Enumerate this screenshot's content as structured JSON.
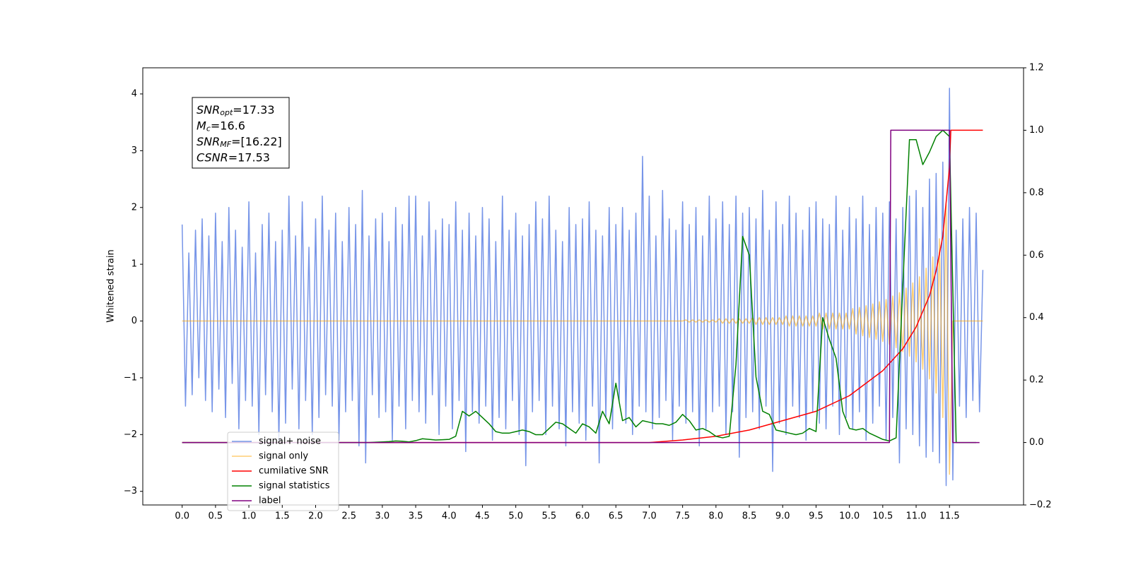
{
  "chart_data": {
    "type": "line",
    "y_label": "Whitened strain",
    "xlim": [
      -0.59,
      12.61
    ],
    "ylim": [
      -3.24,
      4.46
    ],
    "y2lim": [
      -0.2,
      1.2
    ],
    "xticks": [
      {
        "value": 0,
        "label": "0.0"
      },
      0.5,
      {
        "value": 1,
        "label": "1.0"
      },
      1.5,
      {
        "value": 2,
        "label": "2.0"
      },
      2.5,
      {
        "value": 3,
        "label": "3.0"
      },
      3.5,
      {
        "value": 4,
        "label": "4.0"
      },
      4.5,
      {
        "value": 5,
        "label": "5.0"
      },
      5.5,
      {
        "value": 6,
        "label": "6.0"
      },
      6.5,
      {
        "value": 7,
        "label": "7.0"
      },
      7.5,
      {
        "value": 8,
        "label": "8.0"
      },
      8.5,
      {
        "value": 9,
        "label": "9.0"
      },
      9.5,
      {
        "value": 10,
        "label": "10.0"
      },
      10.5,
      {
        "value": 11,
        "label": "11.0"
      },
      11.5
    ],
    "yticks": [
      {
        "value": -3,
        "label": "−3"
      },
      {
        "value": -2,
        "label": "−2"
      },
      {
        "value": -1,
        "label": "−1"
      },
      0,
      1,
      2,
      3,
      4
    ],
    "y2ticks": [
      {
        "value": -0.2,
        "label": "−0.2"
      },
      {
        "value": 0,
        "label": "0.0"
      },
      0.2,
      0.4,
      0.6,
      0.8,
      {
        "value": 1,
        "label": "1.0"
      },
      1.2
    ],
    "grid": false,
    "legend": "lower left",
    "annotation_box": [
      {
        "symbol": "SNR",
        "sub": "opt",
        "text": "=17.33"
      },
      {
        "symbol": "M",
        "sub": "c",
        "text": "=16.6"
      },
      {
        "symbol": "SNR",
        "sub": "MF",
        "text": "=[16.22]"
      },
      {
        "symbol": "CSNR",
        "text": "=17.53"
      }
    ],
    "series": [
      {
        "name": "signal+ noise",
        "color": "#7795e8",
        "alpha": 1,
        "axis": "y",
        "x": [
          0,
          0.05,
          0.1,
          0.15,
          0.2,
          0.25,
          0.3,
          0.35,
          0.4,
          0.45,
          0.5,
          0.55,
          0.6,
          0.65,
          0.7,
          0.75,
          0.8,
          0.85,
          0.9,
          0.95,
          1,
          1.05,
          1.1,
          1.15,
          1.2,
          1.25,
          1.3,
          1.35,
          1.4,
          1.45,
          1.5,
          1.55,
          1.6,
          1.65,
          1.7,
          1.75,
          1.8,
          1.85,
          1.9,
          1.95,
          2,
          2.05,
          2.1,
          2.15,
          2.2,
          2.25,
          2.3,
          2.35,
          2.4,
          2.45,
          2.5,
          2.55,
          2.6,
          2.65,
          2.7,
          2.75,
          2.8,
          2.85,
          2.9,
          2.95,
          3,
          3.05,
          3.1,
          3.15,
          3.2,
          3.25,
          3.3,
          3.35,
          3.4,
          3.45,
          3.5,
          3.55,
          3.6,
          3.65,
          3.7,
          3.75,
          3.8,
          3.85,
          3.9,
          3.95,
          4,
          4.05,
          4.1,
          4.15,
          4.2,
          4.25,
          4.3,
          4.35,
          4.4,
          4.45,
          4.5,
          4.55,
          4.6,
          4.65,
          4.7,
          4.75,
          4.8,
          4.85,
          4.9,
          4.95,
          5,
          5.05,
          5.1,
          5.15,
          5.2,
          5.25,
          5.3,
          5.35,
          5.4,
          5.45,
          5.5,
          5.55,
          5.6,
          5.65,
          5.7,
          5.75,
          5.8,
          5.85,
          5.9,
          5.95,
          6,
          6.05,
          6.1,
          6.15,
          6.2,
          6.25,
          6.3,
          6.35,
          6.4,
          6.45,
          6.5,
          6.55,
          6.6,
          6.65,
          6.7,
          6.75,
          6.8,
          6.85,
          6.9,
          6.95,
          7,
          7.05,
          7.1,
          7.15,
          7.2,
          7.25,
          7.3,
          7.35,
          7.4,
          7.45,
          7.5,
          7.55,
          7.6,
          7.65,
          7.7,
          7.75,
          7.8,
          7.85,
          7.9,
          7.95,
          8,
          8.05,
          8.1,
          8.15,
          8.2,
          8.25,
          8.3,
          8.35,
          8.4,
          8.45,
          8.5,
          8.55,
          8.6,
          8.65,
          8.7,
          8.75,
          8.8,
          8.85,
          8.9,
          8.95,
          9,
          9.05,
          9.1,
          9.15,
          9.2,
          9.25,
          9.3,
          9.35,
          9.4,
          9.45,
          9.5,
          9.55,
          9.6,
          9.65,
          9.7,
          9.75,
          9.8,
          9.85,
          9.9,
          9.95,
          10,
          10.05,
          10.1,
          10.15,
          10.2,
          10.25,
          10.3,
          10.35,
          10.4,
          10.45,
          10.5,
          10.55,
          10.6,
          10.65,
          10.7,
          10.75,
          10.8,
          10.85,
          10.9,
          10.95,
          11,
          11.05,
          11.1,
          11.15,
          11.2,
          11.25,
          11.3,
          11.35,
          11.4,
          11.45,
          11.5,
          11.55,
          11.6,
          11.65,
          11.7,
          11.75,
          11.8,
          11.85,
          11.9,
          11.95,
          12
        ],
        "values": [
          1.7,
          -1.5,
          1.2,
          -1.3,
          1.6,
          -1.0,
          1.8,
          -1.4,
          1.5,
          -1.6,
          1.9,
          -1.2,
          1.4,
          -1.7,
          2.0,
          -1.1,
          1.6,
          -1.9,
          1.3,
          -1.4,
          2.1,
          -1.5,
          1.2,
          -2.0,
          1.7,
          -1.3,
          1.9,
          -1.6,
          1.4,
          -2.1,
          1.6,
          -1.8,
          2.2,
          -1.2,
          1.5,
          -1.9,
          2.1,
          -1.4,
          1.3,
          -2.0,
          1.8,
          -1.7,
          2.2,
          -1.3,
          1.6,
          -1.5,
          1.9,
          -2.1,
          1.4,
          -1.6,
          2.0,
          -1.4,
          1.7,
          -2.2,
          2.3,
          -2.5,
          1.5,
          -1.3,
          1.8,
          -1.7,
          1.9,
          -1.6,
          1.4,
          -2.1,
          2.0,
          -1.5,
          1.7,
          -1.9,
          2.2,
          -1.4,
          2.2,
          -1.6,
          1.5,
          -1.8,
          2.1,
          -1.3,
          1.6,
          -2.0,
          1.8,
          -1.5,
          1.7,
          -1.9,
          2.1,
          -1.4,
          1.6,
          -2.3,
          1.9,
          -1.6,
          1.5,
          -1.8,
          2.0,
          -1.5,
          1.8,
          -2.1,
          1.4,
          -1.7,
          2.2,
          -1.9,
          1.6,
          -1.4,
          1.9,
          -2.0,
          1.5,
          -2.55,
          1.7,
          -1.6,
          2.1,
          -1.4,
          1.8,
          -2.0,
          2.2,
          -1.5,
          1.6,
          -1.9,
          1.4,
          -2.2,
          2.0,
          -1.6,
          1.7,
          -1.8,
          1.8,
          -2.1,
          2.1,
          -1.5,
          1.6,
          -2.5,
          1.5,
          -1.7,
          2.0,
          -1.9,
          1.7,
          -1.4,
          2.0,
          -1.8,
          1.6,
          -2.0,
          1.9,
          -1.5,
          2.9,
          -1.6,
          2.2,
          -1.9,
          1.5,
          -1.7,
          2.3,
          -1.4,
          1.8,
          -2.1,
          1.6,
          -1.5,
          2.1,
          -1.8,
          1.7,
          -1.6,
          2.0,
          -2.2,
          1.5,
          -1.9,
          2.2,
          -1.6,
          1.8,
          -1.5,
          2.1,
          -2.0,
          1.7,
          -1.6,
          2.2,
          -2.4,
          1.9,
          -1.7,
          2.0,
          -1.6,
          1.8,
          -1.9,
          2.3,
          -1.5,
          1.6,
          -2.65,
          2.1,
          -1.8,
          1.7,
          -2.0,
          2.2,
          -1.5,
          1.9,
          -1.7,
          1.6,
          -2.1,
          2.0,
          -1.6,
          2.1,
          -1.8,
          1.8,
          -1.9,
          1.7,
          -1.5,
          2.2,
          -2.0,
          1.6,
          -1.7,
          2.0,
          -1.9,
          1.8,
          -1.6,
          2.2,
          -2.1,
          1.7,
          -1.8,
          2.0,
          -1.5,
          1.9,
          -2.1,
          2.1,
          -1.7,
          1.8,
          -2.5,
          2.0,
          -1.9,
          2.2,
          -2.0,
          2.3,
          -2.2,
          2.0,
          -2.4,
          2.5,
          -2.3,
          2.6,
          -2.5,
          2.8,
          -2.9,
          4.1,
          -2.8,
          1.6,
          -1.5,
          1.8,
          -1.7,
          2.0,
          -1.4,
          1.9,
          -1.6,
          0.9
        ]
      },
      {
        "name": "signal only",
        "color": "#ffa500",
        "alpha": 0.55,
        "axis": "y",
        "x": [
          0,
          7.5,
          7.55,
          7.6,
          7.65,
          7.7,
          7.75,
          7.8,
          7.85,
          7.9,
          7.95,
          8,
          8.05,
          8.1,
          8.15,
          8.2,
          8.25,
          8.3,
          8.35,
          8.4,
          8.45,
          8.5,
          8.55,
          8.6,
          8.65,
          8.7,
          8.75,
          8.8,
          8.85,
          8.9,
          8.95,
          9,
          9.05,
          9.1,
          9.15,
          9.2,
          9.25,
          9.3,
          9.35,
          9.4,
          9.45,
          9.5,
          9.55,
          9.6,
          9.65,
          9.7,
          9.75,
          9.8,
          9.85,
          9.9,
          9.95,
          10,
          10.05,
          10.1,
          10.15,
          10.2,
          10.25,
          10.3,
          10.35,
          10.4,
          10.45,
          10.5,
          10.55,
          10.6,
          10.65,
          10.7,
          10.75,
          10.8,
          10.85,
          10.9,
          10.95,
          11,
          11.05,
          11.1,
          11.15,
          11.2,
          11.25,
          11.3,
          11.35,
          11.4,
          11.45,
          11.5,
          11.55,
          12
        ],
        "values": [
          0,
          0,
          0.02,
          -0.02,
          0.02,
          -0.02,
          0.02,
          -0.02,
          0.02,
          -0.02,
          0.02,
          -0.02,
          0.04,
          -0.04,
          0.04,
          -0.04,
          0.04,
          -0.04,
          0.04,
          -0.04,
          0.04,
          -0.04,
          0.06,
          -0.06,
          0.06,
          -0.06,
          0.06,
          -0.06,
          0.06,
          -0.06,
          0.06,
          -0.06,
          0.09,
          -0.09,
          0.09,
          -0.09,
          0.09,
          -0.09,
          0.09,
          -0.09,
          0.09,
          -0.09,
          0.14,
          -0.14,
          0.14,
          -0.14,
          0.14,
          -0.14,
          0.14,
          -0.14,
          0.14,
          -0.14,
          0.22,
          -0.23,
          0.24,
          -0.26,
          0.27,
          -0.29,
          0.3,
          -0.32,
          0.34,
          -0.36,
          0.38,
          -0.41,
          0.44,
          -0.47,
          0.5,
          -0.54,
          0.58,
          -0.62,
          0.67,
          -0.72,
          0.78,
          -0.85,
          0.93,
          -1.02,
          1.13,
          -1.27,
          1.45,
          -1.7,
          2.05,
          -2.7,
          0,
          0
        ]
      },
      {
        "name": "cumilative SNR",
        "color": "#ff0000",
        "alpha": 1,
        "axis": "y2",
        "x": [
          0,
          7,
          7.5,
          8,
          8.5,
          9,
          9.5,
          10,
          10.5,
          10.8,
          11,
          11.2,
          11.3,
          11.4,
          11.5,
          11.52,
          12
        ],
        "values": [
          0,
          0,
          0.008,
          0.02,
          0.04,
          0.07,
          0.1,
          0.15,
          0.23,
          0.3,
          0.37,
          0.47,
          0.55,
          0.66,
          0.88,
          1,
          1
        ]
      },
      {
        "name": "signal statistics",
        "color": "#008000",
        "alpha": 1,
        "axis": "y2",
        "x": [
          0,
          0.1,
          0.2,
          0.3,
          0.4,
          0.5,
          0.6,
          0.7,
          0.8,
          0.9,
          1,
          1.1,
          1.2,
          1.3,
          1.4,
          1.5,
          1.6,
          1.7,
          1.8,
          1.9,
          2,
          2.1,
          2.2,
          2.3,
          2.4,
          2.5,
          2.6,
          2.7,
          2.8,
          2.9,
          3,
          3.1,
          3.2,
          3.3,
          3.4,
          3.5,
          3.6,
          3.7,
          3.8,
          3.9,
          4,
          4.1,
          4.2,
          4.3,
          4.4,
          4.5,
          4.6,
          4.7,
          4.8,
          4.9,
          5,
          5.1,
          5.2,
          5.3,
          5.4,
          5.5,
          5.6,
          5.7,
          5.8,
          5.9,
          6,
          6.1,
          6.2,
          6.3,
          6.4,
          6.5,
          6.6,
          6.7,
          6.8,
          6.9,
          7,
          7.1,
          7.2,
          7.3,
          7.4,
          7.5,
          7.6,
          7.7,
          7.8,
          7.9,
          8,
          8.1,
          8.2,
          8.3,
          8.4,
          8.5,
          8.6,
          8.7,
          8.8,
          8.9,
          9,
          9.1,
          9.2,
          9.3,
          9.4,
          9.5,
          9.6,
          9.7,
          9.8,
          9.9,
          10,
          10.1,
          10.2,
          10.3,
          10.4,
          10.5,
          10.6,
          10.7,
          10.8,
          10.9,
          11,
          11.1,
          11.2,
          11.3,
          11.4,
          11.5,
          11.6,
          11.7,
          11.8,
          11.9
        ],
        "values": [
          0,
          0,
          0,
          0,
          0,
          0,
          0,
          0,
          0,
          0,
          0,
          0,
          0,
          0,
          0,
          0,
          0,
          0,
          0,
          0,
          0,
          0,
          0,
          0,
          0,
          0,
          0,
          0,
          0,
          0.001,
          0.002,
          0.003,
          0.005,
          0.004,
          0.002,
          0.006,
          0.012,
          0.01,
          0.008,
          0.009,
          0.01,
          0.02,
          0.1,
          0.085,
          0.1,
          0.08,
          0.06,
          0.035,
          0.03,
          0.03,
          0.035,
          0.04,
          0.035,
          0.025,
          0.025,
          0.045,
          0.065,
          0.06,
          0.045,
          0.03,
          0.06,
          0.05,
          0.03,
          0.1,
          0.06,
          0.19,
          0.07,
          0.08,
          0.05,
          0.07,
          0.065,
          0.06,
          0.06,
          0.055,
          0.065,
          0.09,
          0.07,
          0.04,
          0.045,
          0.035,
          0.02,
          0.015,
          0.02,
          0.25,
          0.66,
          0.6,
          0.21,
          0.1,
          0.09,
          0.04,
          0.035,
          0.03,
          0.025,
          0.03,
          0.045,
          0.035,
          0.4,
          0.33,
          0.27,
          0.1,
          0.045,
          0.04,
          0.045,
          0.03,
          0.02,
          0.01,
          0.005,
          0.015,
          0.5,
          0.97,
          0.97,
          0.89,
          0.93,
          0.98,
          1,
          0.98,
          0,
          0,
          0,
          0
        ]
      },
      {
        "name": "label",
        "color": "#800080",
        "alpha": 1,
        "axis": "y2",
        "x": [
          0,
          10.6,
          10.62,
          11.5,
          11.55,
          11.95
        ],
        "values": [
          0,
          0,
          1,
          1,
          0,
          0
        ]
      }
    ]
  }
}
